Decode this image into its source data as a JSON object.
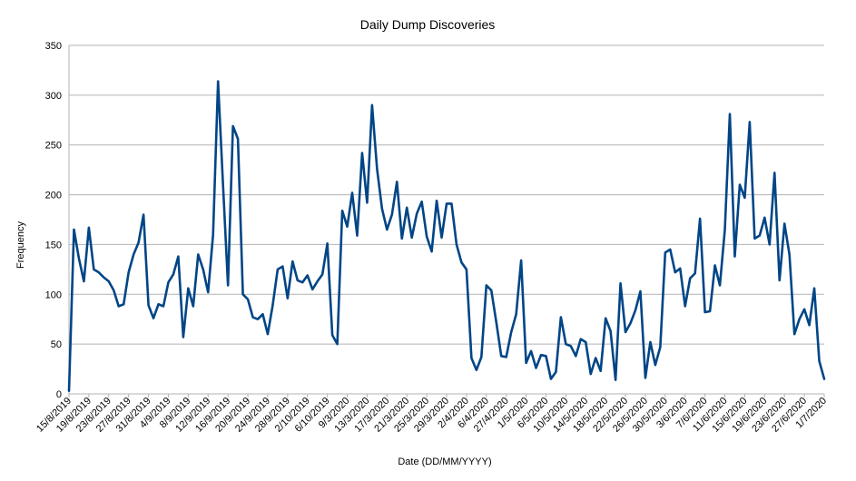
{
  "chart_data": {
    "type": "line",
    "title": "Daily Dump Discoveries",
    "xlabel": "Date (DD/MM/YYYY)",
    "ylabel": "Frequency",
    "ylim": [
      0,
      350
    ],
    "yticks": [
      0,
      50,
      100,
      150,
      200,
      250,
      300,
      350
    ],
    "grid": true,
    "legend": "none",
    "x_tick_labels": [
      "15/8/2019",
      "19/8/2019",
      "23/8/2019",
      "27/8/2019",
      "31/8/2019",
      "4/9/2019",
      "8/9/2019",
      "12/9/2019",
      "16/9/2019",
      "20/9/2019",
      "24/9/2019",
      "28/9/2019",
      "2/10/2019",
      "6/10/2019",
      "9/3/2020",
      "13/3/2020",
      "17/3/2020",
      "21/3/2020",
      "25/3/2020",
      "29/3/2020",
      "2/4/2020",
      "6/4/2020",
      "27/4/2020",
      "1/5/2020",
      "6/5/2020",
      "10/5/2020",
      "14/5/2020",
      "18/5/2020",
      "22/5/2020",
      "26/5/2020",
      "30/5/2020",
      "3/6/2020",
      "7/6/2020",
      "11/6/2020",
      "15/6/2020",
      "19/6/2020",
      "23/6/2020",
      "27/6/2020",
      "1/7/2020"
    ],
    "colors": {
      "line": "#004586",
      "grid": "#b3b3b3"
    },
    "series": [
      {
        "values": [
          3,
          165,
          136,
          113,
          167,
          125,
          122,
          117,
          113,
          104,
          88,
          90,
          122,
          140,
          152,
          180,
          89,
          76,
          90,
          88,
          112,
          120,
          138,
          57,
          106,
          88,
          140,
          125,
          102,
          160,
          314,
          210,
          109,
          269,
          256,
          100,
          95,
          77,
          75,
          80,
          60,
          89,
          125,
          128,
          96,
          133,
          114,
          112,
          119,
          105,
          113,
          120,
          151,
          59,
          50,
          184,
          168,
          202,
          159,
          242,
          192,
          290,
          226,
          186,
          165,
          180,
          213,
          156,
          187,
          157,
          181,
          193,
          158,
          143,
          194,
          157,
          191,
          191,
          150,
          132,
          125,
          36,
          24,
          37,
          109,
          104,
          72,
          38,
          37,
          62,
          80,
          134,
          31,
          43,
          26,
          39,
          38,
          15,
          22,
          77,
          50,
          48,
          38,
          55,
          52,
          20,
          36,
          23,
          76,
          63,
          14,
          111,
          62,
          71,
          84,
          103,
          16,
          52,
          29,
          47,
          142,
          145,
          122,
          126,
          88,
          116,
          121,
          176,
          82,
          83,
          129,
          109,
          165,
          281,
          138,
          210,
          197,
          273,
          156,
          159,
          177,
          150,
          222,
          114,
          171,
          140,
          60,
          75,
          85,
          69,
          106,
          33,
          15
        ]
      }
    ]
  }
}
